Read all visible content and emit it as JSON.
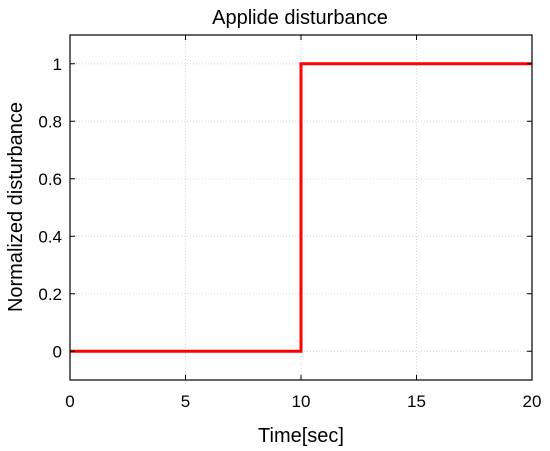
{
  "chart_data": {
    "type": "line",
    "title": "Applide disturbance",
    "xlabel": "Time[sec]",
    "ylabel": "Normalized disturbance",
    "xlim": [
      0,
      20
    ],
    "ylim": [
      -0.1,
      1.1
    ],
    "xticks": [
      0,
      5,
      10,
      15,
      20
    ],
    "xtick_labels": [
      "0",
      "5",
      "10",
      "15",
      "20"
    ],
    "yticks": [
      0,
      0.2,
      0.4,
      0.6,
      0.8,
      1
    ],
    "ytick_labels": [
      "0",
      "0.2",
      "0.4",
      "0.6",
      "0.8",
      "1"
    ],
    "grid": true,
    "series": [
      {
        "color": "#ff0000",
        "x": [
          0,
          10,
          10,
          20
        ],
        "y": [
          0,
          0,
          1,
          1
        ]
      }
    ]
  }
}
